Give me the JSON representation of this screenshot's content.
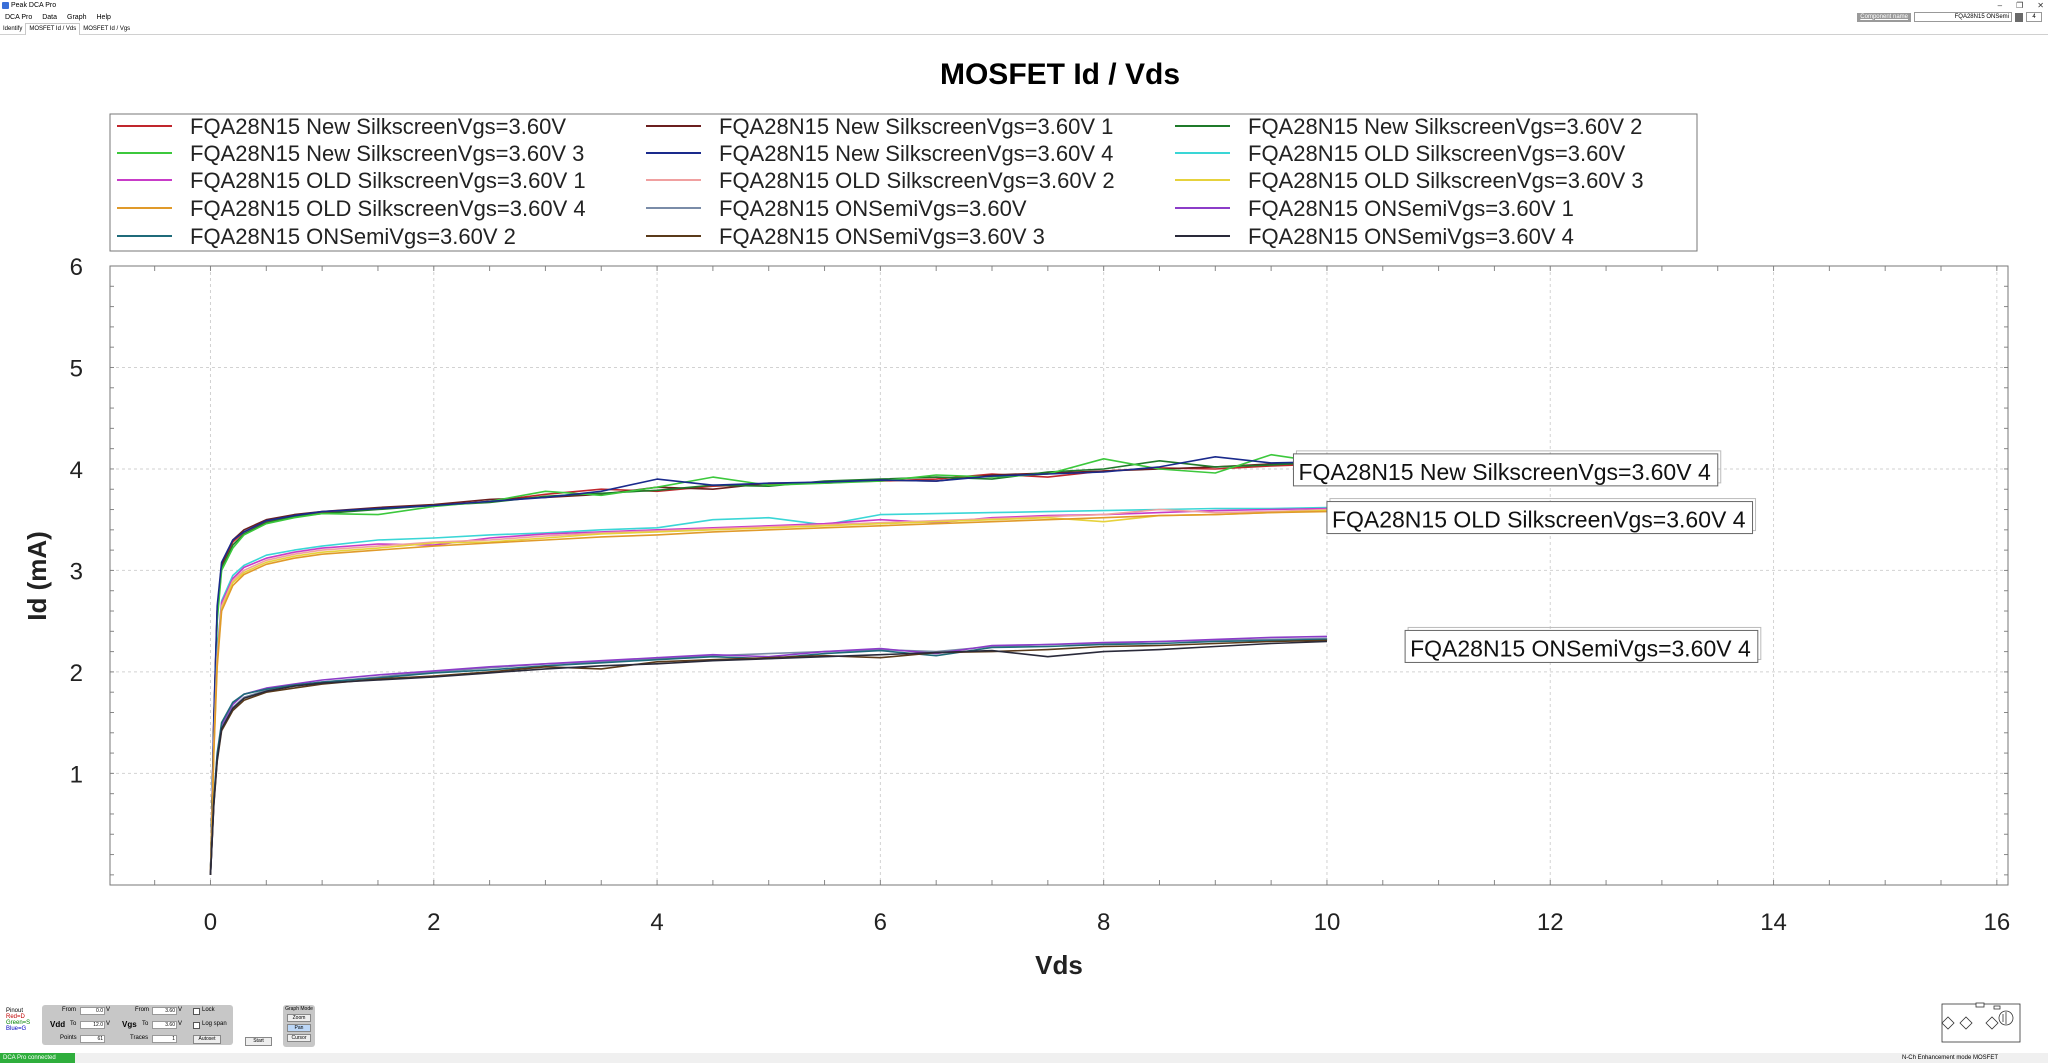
{
  "window": {
    "title": "Peak DCA Pro",
    "controls": [
      "–",
      "❐",
      "✕"
    ]
  },
  "menu": [
    "DCA Pro",
    "Data",
    "Graph",
    "Help"
  ],
  "tabs": [
    "Identify",
    "MOSFET Id / Vds",
    "MOSFET Id / Vgs"
  ],
  "active_tab": 1,
  "component": {
    "label": "Component name",
    "value": "FQA28N15 ONSemi",
    "spin": "4"
  },
  "colors": {
    "status_green": "#2fae3c",
    "panel_gray": "#c7c7c7",
    "grid": "#cfcfcf"
  },
  "chart_data": {
    "type": "line",
    "title": "MOSFET Id / Vds",
    "xlabel": "Vds",
    "ylabel": "Id (mA)",
    "xlim": [
      -0.9,
      16.1
    ],
    "ylim": [
      -0.1,
      6.0
    ],
    "xticks": [
      0,
      2,
      4,
      6,
      8,
      10,
      12,
      14,
      16
    ],
    "yticks": [
      1,
      2,
      3,
      4,
      5,
      6
    ],
    "grid": true,
    "legend_position": "top",
    "x": [
      0.0,
      0.03,
      0.06,
      0.1,
      0.2,
      0.3,
      0.5,
      0.75,
      1.0,
      1.5,
      2.0,
      2.5,
      3.0,
      3.5,
      4.0,
      4.5,
      5.0,
      5.5,
      6.0,
      6.5,
      7.0,
      7.5,
      8.0,
      8.5,
      9.0,
      9.5,
      10.0
    ],
    "series": [
      {
        "name": "FQA28N15 New SilkscreenVgs=3.60V",
        "color": "#c0262d",
        "values": [
          0.0,
          1.5,
          2.6,
          3.05,
          3.28,
          3.38,
          3.48,
          3.53,
          3.57,
          3.61,
          3.64,
          3.68,
          3.75,
          3.8,
          3.78,
          3.83,
          3.85,
          3.87,
          3.88,
          3.9,
          3.95,
          3.92,
          3.98,
          4.01,
          4.0,
          4.03,
          4.05
        ]
      },
      {
        "name": "FQA28N15 New SilkscreenVgs=3.60V 1",
        "color": "#6b1f1f",
        "values": [
          0.0,
          1.5,
          2.6,
          3.06,
          3.3,
          3.4,
          3.5,
          3.55,
          3.58,
          3.62,
          3.65,
          3.7,
          3.72,
          3.75,
          3.82,
          3.8,
          3.86,
          3.86,
          3.89,
          3.88,
          3.94,
          3.96,
          3.98,
          4.0,
          4.02,
          4.05,
          4.06
        ]
      },
      {
        "name": "FQA28N15 New SilkscreenVgs=3.60V 2",
        "color": "#1f7a2a",
        "values": [
          0.0,
          1.48,
          2.55,
          3.02,
          3.25,
          3.36,
          3.47,
          3.53,
          3.56,
          3.6,
          3.64,
          3.67,
          3.73,
          3.76,
          3.79,
          3.84,
          3.83,
          3.88,
          3.9,
          3.92,
          3.9,
          3.97,
          4.0,
          4.08,
          4.02,
          4.04,
          4.07
        ]
      },
      {
        "name": "FQA28N15 New SilkscreenVgs=3.60V 3",
        "color": "#3cc83c",
        "values": [
          0.0,
          1.45,
          2.5,
          3.0,
          3.22,
          3.35,
          3.46,
          3.52,
          3.56,
          3.55,
          3.63,
          3.68,
          3.78,
          3.74,
          3.82,
          3.92,
          3.84,
          3.86,
          3.88,
          3.94,
          3.92,
          3.95,
          4.1,
          4.0,
          3.96,
          4.14,
          4.06
        ]
      },
      {
        "name": "FQA28N15 New SilkscreenVgs=3.60V 4",
        "color": "#1a2a8c",
        "values": [
          0.0,
          1.55,
          2.65,
          3.08,
          3.3,
          3.38,
          3.49,
          3.54,
          3.58,
          3.61,
          3.64,
          3.68,
          3.72,
          3.78,
          3.9,
          3.84,
          3.86,
          3.87,
          3.89,
          3.88,
          3.93,
          3.95,
          3.97,
          4.02,
          4.12,
          4.06,
          4.07
        ]
      },
      {
        "name": "FQA28N15 OLD SilkscreenVgs=3.60V",
        "color": "#3ad6d6",
        "values": [
          0.0,
          1.3,
          2.2,
          2.7,
          2.95,
          3.05,
          3.15,
          3.2,
          3.24,
          3.3,
          3.32,
          3.35,
          3.37,
          3.4,
          3.42,
          3.5,
          3.52,
          3.45,
          3.55,
          3.56,
          3.57,
          3.58,
          3.59,
          3.6,
          3.61,
          3.61,
          3.62
        ]
      },
      {
        "name": "FQA28N15 OLD SilkscreenVgs=3.60V 1",
        "color": "#c83cc8",
        "values": [
          0.0,
          1.28,
          2.15,
          2.68,
          2.92,
          3.03,
          3.12,
          3.18,
          3.22,
          3.26,
          3.25,
          3.32,
          3.36,
          3.38,
          3.4,
          3.42,
          3.44,
          3.46,
          3.5,
          3.47,
          3.52,
          3.54,
          3.55,
          3.57,
          3.59,
          3.6,
          3.61
        ]
      },
      {
        "name": "FQA28N15 OLD SilkscreenVgs=3.60V 2",
        "color": "#f0a0a0",
        "values": [
          0.0,
          1.25,
          2.12,
          2.65,
          2.9,
          3.0,
          3.1,
          3.16,
          3.2,
          3.24,
          3.28,
          3.3,
          3.34,
          3.37,
          3.39,
          3.41,
          3.43,
          3.45,
          3.47,
          3.49,
          3.51,
          3.53,
          3.55,
          3.6,
          3.57,
          3.58,
          3.6
        ]
      },
      {
        "name": "FQA28N15 OLD SilkscreenVgs=3.60V 3",
        "color": "#e6d23c",
        "values": [
          0.0,
          1.22,
          2.1,
          2.62,
          2.88,
          2.98,
          3.08,
          3.14,
          3.18,
          3.22,
          3.27,
          3.28,
          3.32,
          3.36,
          3.38,
          3.4,
          3.42,
          3.44,
          3.46,
          3.48,
          3.5,
          3.52,
          3.48,
          3.54,
          3.55,
          3.57,
          3.59
        ]
      },
      {
        "name": "FQA28N15 OLD SilkscreenVgs=3.60V 4",
        "color": "#e09a2a",
        "values": [
          0.0,
          1.2,
          2.05,
          2.6,
          2.85,
          2.96,
          3.06,
          3.12,
          3.16,
          3.2,
          3.24,
          3.27,
          3.3,
          3.33,
          3.35,
          3.38,
          3.4,
          3.42,
          3.44,
          3.46,
          3.48,
          3.5,
          3.52,
          3.54,
          3.55,
          3.57,
          3.58
        ]
      },
      {
        "name": "FQA28N15 ONSemiVgs=3.60V",
        "color": "#7a8ca8",
        "values": [
          0.0,
          0.7,
          1.15,
          1.45,
          1.65,
          1.75,
          1.82,
          1.86,
          1.9,
          1.95,
          2.0,
          2.04,
          2.08,
          2.1,
          2.13,
          2.16,
          2.18,
          2.2,
          2.22,
          2.2,
          2.25,
          2.27,
          2.28,
          2.3,
          2.31,
          2.32,
          2.33
        ]
      },
      {
        "name": "FQA28N15 ONSemiVgs=3.60V 1",
        "color": "#8c3cc8",
        "values": [
          0.0,
          0.72,
          1.18,
          1.48,
          1.68,
          1.78,
          1.84,
          1.88,
          1.92,
          1.97,
          2.01,
          2.05,
          2.08,
          2.11,
          2.14,
          2.17,
          2.15,
          2.2,
          2.23,
          2.18,
          2.26,
          2.27,
          2.29,
          2.3,
          2.32,
          2.34,
          2.35
        ]
      },
      {
        "name": "FQA28N15 ONSemiVgs=3.60V 2",
        "color": "#1f6b7a",
        "values": [
          0.0,
          0.75,
          1.2,
          1.5,
          1.7,
          1.78,
          1.83,
          1.87,
          1.9,
          1.94,
          1.99,
          2.02,
          2.06,
          2.09,
          2.12,
          2.15,
          2.13,
          2.18,
          2.21,
          2.16,
          2.24,
          2.25,
          2.27,
          2.28,
          2.3,
          2.31,
          2.32
        ]
      },
      {
        "name": "FQA28N15 ONSemiVgs=3.60V 3",
        "color": "#5a3a1a",
        "values": [
          0.0,
          0.68,
          1.12,
          1.42,
          1.62,
          1.72,
          1.8,
          1.84,
          1.88,
          1.93,
          1.96,
          2.0,
          2.05,
          2.03,
          2.1,
          2.12,
          2.14,
          2.16,
          2.14,
          2.19,
          2.2,
          2.22,
          2.25,
          2.26,
          2.28,
          2.3,
          2.31
        ]
      },
      {
        "name": "FQA28N15 ONSemiVgs=3.60V 4",
        "color": "#2a2a3a",
        "values": [
          0.0,
          0.7,
          1.14,
          1.44,
          1.64,
          1.74,
          1.81,
          1.86,
          1.89,
          1.92,
          1.95,
          1.99,
          2.03,
          2.06,
          2.08,
          2.11,
          2.13,
          2.15,
          2.17,
          2.19,
          2.21,
          2.15,
          2.2,
          2.22,
          2.25,
          2.28,
          2.3
        ]
      }
    ],
    "annotations": [
      {
        "text": "FQA28N15 New SilkscreenVgs=3.60V 4",
        "x": 9.7,
        "y": 4.05
      },
      {
        "text": "FQA28N15 OLD SilkscreenVgs=3.60V 4",
        "x": 10.0,
        "y": 3.58
      },
      {
        "text": "FQA28N15 ONSemiVgs=3.60V 4",
        "x": 10.7,
        "y": 2.31
      }
    ]
  },
  "controls": {
    "pinout": {
      "title": "Pinout",
      "red": "Red=D",
      "green": "Green=S",
      "blue": "Blue=G"
    },
    "vdd": {
      "label": "Vdd",
      "from_label": "From",
      "from": "0.0",
      "to_label": "To",
      "to": "12.0",
      "unit": "V",
      "points_label": "Points",
      "points": "61"
    },
    "vgs": {
      "label": "Vgs",
      "from_label": "From",
      "from": "3.60",
      "to_label": "To",
      "to": "3.60",
      "unit": "V",
      "traces_label": "Traces",
      "traces": "1"
    },
    "lock": "Lock",
    "log_span": "Log span",
    "autoset": "Autoset",
    "start": "Start",
    "graph_mode": {
      "title": "Graph Mode",
      "options": [
        "Zoom",
        "Pan",
        "Cursor"
      ],
      "selected": 1
    }
  },
  "status": {
    "left": "DCA Pro connected",
    "right": "N-Ch Enhancement mode MOSFET"
  }
}
